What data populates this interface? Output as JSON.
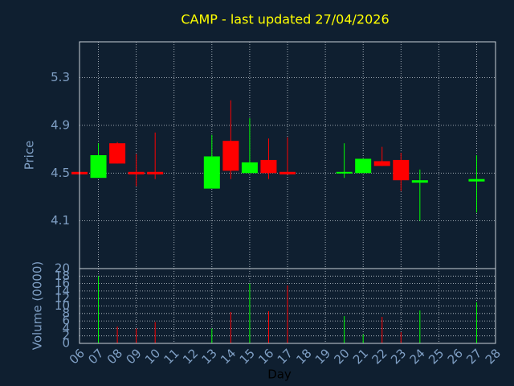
{
  "chart_data": {
    "type": "candlestick",
    "title": "CAMP - last updated 27/04/2026",
    "ylabel": "Price",
    "volume_label": "Volume (0000)",
    "xlabel": "Day",
    "x": [
      6,
      7,
      8,
      9,
      10,
      13,
      14,
      15,
      16,
      17,
      20,
      21,
      22,
      23,
      24,
      27
    ],
    "open": [
      4.51,
      4.46,
      4.75,
      4.51,
      4.51,
      4.37,
      4.77,
      4.5,
      4.61,
      4.51,
      4.5,
      4.5,
      4.6,
      4.61,
      4.42,
      4.43
    ],
    "high": [
      4.51,
      4.75,
      4.76,
      4.66,
      4.84,
      4.82,
      5.11,
      4.96,
      4.79,
      4.8,
      4.75,
      4.62,
      4.72,
      4.67,
      4.53,
      4.65
    ],
    "low": [
      4.49,
      4.46,
      4.58,
      4.39,
      4.45,
      4.37,
      4.45,
      4.5,
      4.45,
      4.49,
      4.46,
      4.5,
      4.56,
      4.35,
      4.1,
      4.17
    ],
    "close": [
      4.49,
      4.65,
      4.58,
      4.49,
      4.49,
      4.64,
      4.52,
      4.59,
      4.5,
      4.49,
      4.51,
      4.62,
      4.56,
      4.44,
      4.44,
      4.45
    ],
    "volume": [
      0,
      18,
      4.5,
      4,
      5.7,
      4,
      8.4,
      16,
      8.6,
      15.5,
      7.3,
      2.4,
      7.1,
      3,
      8.8,
      11
    ],
    "up_color": "#00ff00",
    "down_color": "#ff0000",
    "xlim": [
      6,
      28
    ],
    "xticks": [
      {
        "value": 6,
        "label": "06"
      },
      {
        "value": 7,
        "label": "07"
      },
      {
        "value": 8,
        "label": "08"
      },
      {
        "value": 9,
        "label": "09"
      },
      {
        "value": 10,
        "label": "10"
      },
      {
        "value": 11,
        "label": "11"
      },
      {
        "value": 12,
        "label": "12"
      },
      {
        "value": 13,
        "label": "13"
      },
      {
        "value": 14,
        "label": "14"
      },
      {
        "value": 15,
        "label": "15"
      },
      {
        "value": 16,
        "label": "16"
      },
      {
        "value": 17,
        "label": "17"
      },
      {
        "value": 18,
        "label": "18"
      },
      {
        "value": 19,
        "label": "19"
      },
      {
        "value": 20,
        "label": "20"
      },
      {
        "value": 21,
        "label": "21"
      },
      {
        "value": 22,
        "label": "22"
      },
      {
        "value": 23,
        "label": "23"
      },
      {
        "value": 24,
        "label": "24"
      },
      {
        "value": 25,
        "label": "25"
      },
      {
        "value": 26,
        "label": "26"
      },
      {
        "value": 27,
        "label": "27"
      },
      {
        "value": 28,
        "label": "28"
      }
    ],
    "ylim": [
      3.7,
      5.6
    ],
    "yticks": [
      4.1,
      4.5,
      4.9,
      5.3
    ],
    "volume_ylim": [
      0,
      20
    ],
    "volume_yticks": [
      0,
      2,
      4,
      6,
      8,
      10,
      12,
      14,
      16,
      18,
      20
    ],
    "grid": true
  }
}
